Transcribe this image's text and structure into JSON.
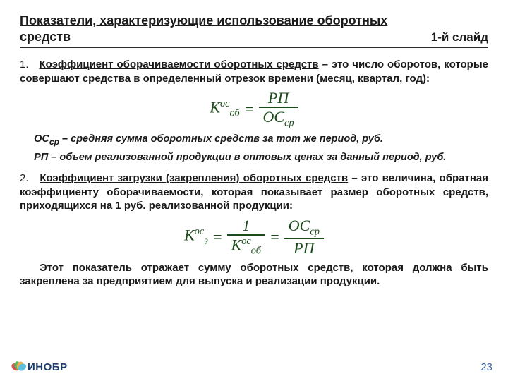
{
  "header": {
    "title": "Показатели, характеризующие использование оборотных средств",
    "slide_label": "1-й слайд"
  },
  "item1": {
    "num": "1.",
    "term": "Коэффициент оборачиваемости оборотных средств",
    "rest": " – это число оборотов, которые совершают средства в определенный отрезок времени (месяц, квартал, год):"
  },
  "formula1": {
    "left_base": "К",
    "left_sub": "об",
    "left_sup": "ос",
    "eq": "=",
    "top": "РП",
    "bot_base": "ОС",
    "bot_sub": "ср",
    "color": "#1b4a1b"
  },
  "defs1": {
    "line1_sym_base": "ОС",
    "line1_sym_sub": "ср",
    "line1_text": " – средняя сумма оборотных средств за тот же период, руб.",
    "line2_sym": "РП",
    "line2_text": " – объем реализованной продукции в оптовых ценах за данный период, руб."
  },
  "item2": {
    "num": "2.",
    "term": "Коэффициент загрузки (закрепления) оборотных средств",
    "rest": " – это величина, обратная коэффициенту оборачиваемости, которая показывает размер оборотных средств, приходящихся на 1 руб. реализованной продукции:"
  },
  "formula2": {
    "left_base": "К",
    "left_sub": "з",
    "left_sup": "ос",
    "eq1": "=",
    "mid_top": "1",
    "mid_bot_base": "К",
    "mid_bot_sub": "об",
    "mid_bot_sup": "ос",
    "eq2": "=",
    "r_top_base": "ОС",
    "r_top_sub": "ср",
    "r_bot": "РП",
    "color": "#1b4a1b"
  },
  "closing": {
    "text": "Этот показатель отражает сумму оборотных средств, которая должна быть закреплена за предприятием для выпуска и реализации продукции."
  },
  "footer": {
    "logo_text": "ИНОБР",
    "page_number": "23",
    "petal_colors": [
      "#d9534f",
      "#5cb85c",
      "#f0ad4e",
      "#5bc0de"
    ]
  }
}
